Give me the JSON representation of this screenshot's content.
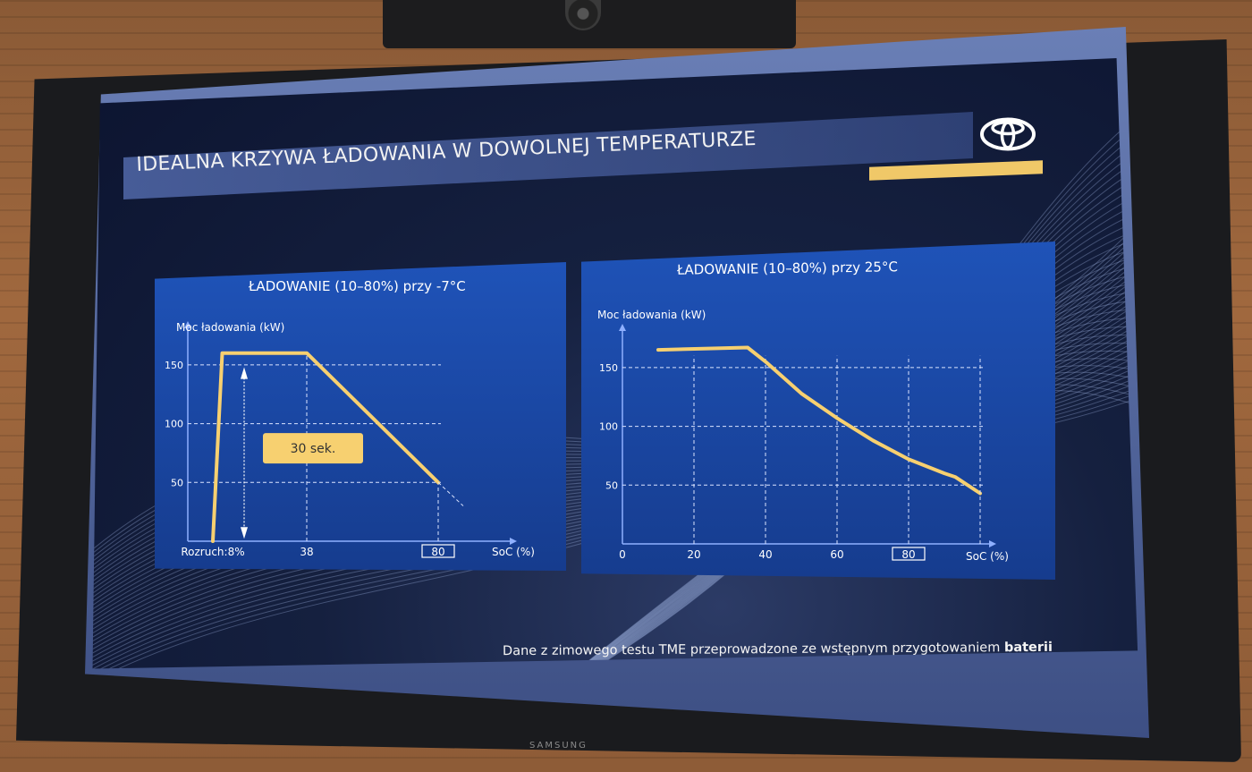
{
  "slide": {
    "title": "IDEALNA KRZYWA ŁADOWANIA W DOWOLNEJ TEMPERATURZE",
    "footnote_main": "Dane z zimowego testu TME przeprowadzone ze wstępnym przygotowaniem",
    "footnote_bold": "baterii",
    "tv_brand": "SAMSUNG",
    "logo_icon": "toyota-logo-icon",
    "colors": {
      "accent_gold": "#f0c868",
      "curve": "#f7d070",
      "panel_blue": "#1f53b8",
      "grid": "#dbe4ff"
    }
  },
  "chart_data": [
    {
      "type": "line",
      "title": "ŁADOWANIE (10–80%) przy -7°C",
      "ylabel": "Moc ładowania (kW)",
      "xlabel": "SoC (%)",
      "ylim": [
        0,
        175
      ],
      "xlim": [
        0,
        100
      ],
      "yticks": [
        150,
        100,
        50
      ],
      "yticks_labels": [
        "150",
        "100",
        "50"
      ],
      "xticks": [
        {
          "value": 8,
          "label": "Rozruch:8%"
        },
        {
          "value": 38,
          "label": "38"
        },
        {
          "value": 80,
          "label": "80",
          "boxed": true
        }
      ],
      "series": [
        {
          "values": [
            {
              "x": 8,
              "y": 0
            },
            {
              "x": 11,
              "y": 160
            },
            {
              "x": 38,
              "y": 160
            },
            {
              "x": 80,
              "y": 50
            }
          ]
        }
      ],
      "annotation": {
        "text": "30 sek.",
        "arrow": "vertical double-headed arrow beside rise"
      },
      "grid": "dashed guide lines"
    },
    {
      "type": "line",
      "title": "ŁADOWANIE (10–80%) przy 25°C",
      "ylabel": "Moc ładowania (kW)",
      "xlabel": "SoC (%)",
      "ylim": [
        0,
        175
      ],
      "xlim": [
        0,
        100
      ],
      "yticks": [
        150,
        100,
        50
      ],
      "yticks_labels": [
        "150",
        "100",
        "50"
      ],
      "xticks": [
        {
          "value": 0,
          "label": "0"
        },
        {
          "value": 20,
          "label": "20"
        },
        {
          "value": 40,
          "label": "40"
        },
        {
          "value": 60,
          "label": "60"
        },
        {
          "value": 80,
          "label": "80",
          "boxed": true
        }
      ],
      "series": [
        {
          "values": [
            {
              "x": 10,
              "y": 165
            },
            {
              "x": 35,
              "y": 167
            },
            {
              "x": 40,
              "y": 155
            },
            {
              "x": 50,
              "y": 128
            },
            {
              "x": 60,
              "y": 107
            },
            {
              "x": 70,
              "y": 88
            },
            {
              "x": 80,
              "y": 72
            },
            {
              "x": 90,
              "y": 60
            },
            {
              "x": 93,
              "y": 57
            },
            {
              "x": 100,
              "y": 43
            }
          ]
        }
      ],
      "grid": "dashed"
    }
  ]
}
